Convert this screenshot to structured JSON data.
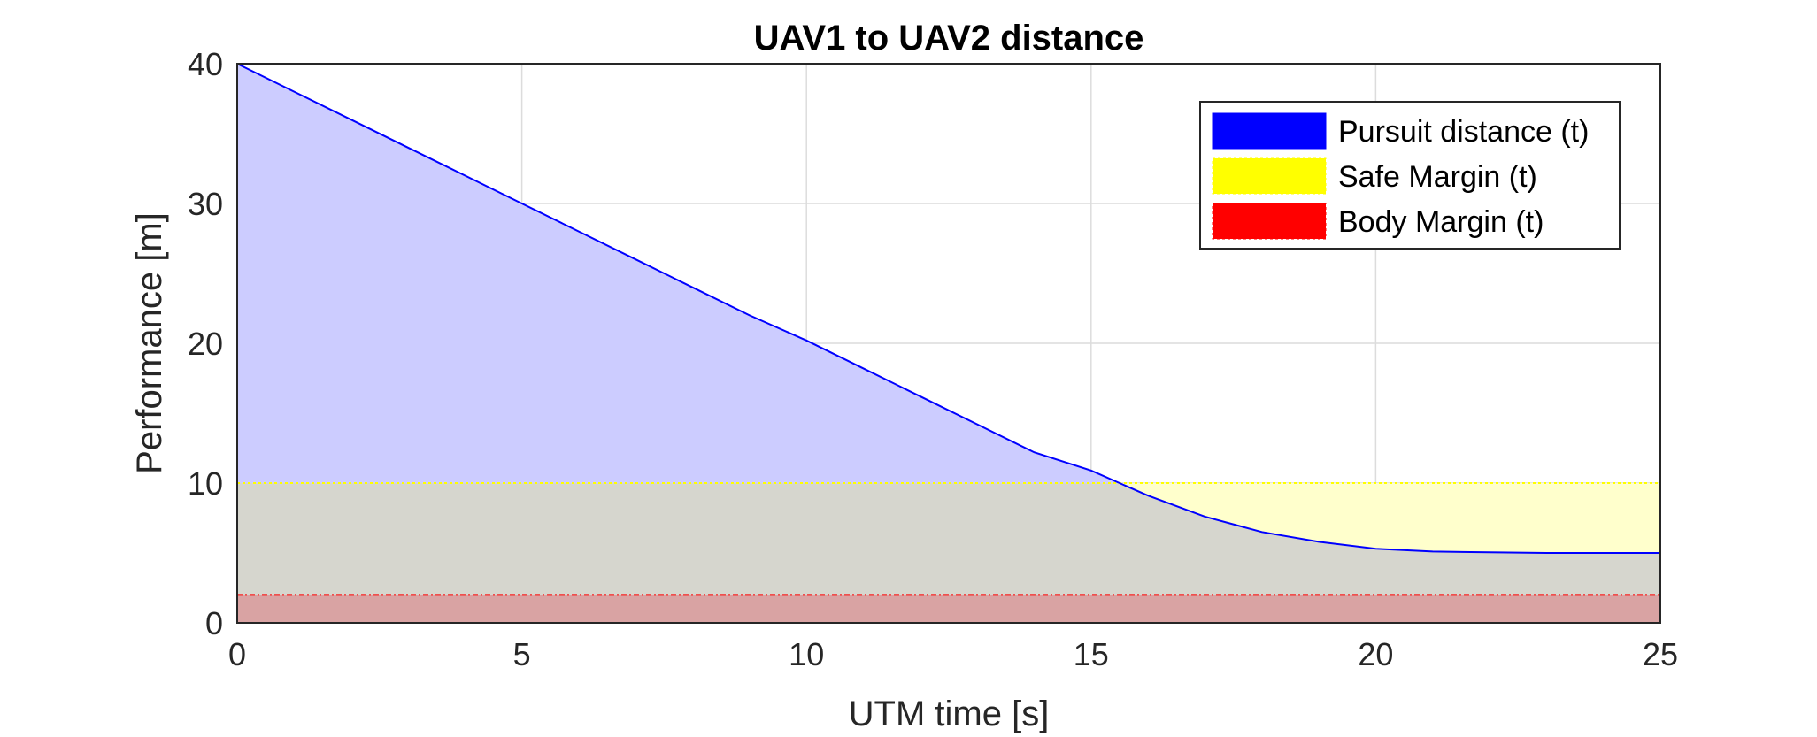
{
  "chart_data": {
    "type": "area",
    "title": "UAV1 to UAV2 distance",
    "xlabel": "UTM time [s]",
    "ylabel": "Performance [m]",
    "xlim": [
      0,
      25
    ],
    "ylim": [
      0,
      40
    ],
    "xticks": [
      "0",
      "5",
      "10",
      "15",
      "20",
      "25"
    ],
    "yticks": [
      "0",
      "10",
      "20",
      "30",
      "40"
    ],
    "grid": true,
    "legend_position": "top-right",
    "series": [
      {
        "name": "Pursuit distance (t)",
        "color": "#0000ff",
        "fill": "#ccccff",
        "x": [
          0,
          1,
          2,
          3,
          4,
          5,
          6,
          7,
          8,
          9,
          10,
          11,
          12,
          13,
          14,
          15,
          15.5,
          16,
          17,
          18,
          19,
          20,
          21,
          22,
          23,
          24,
          25
        ],
        "y": [
          40,
          38,
          36,
          34,
          32,
          30,
          28,
          26,
          24,
          22,
          20.2,
          18.2,
          16.2,
          14.2,
          12.2,
          10.9,
          10.0,
          9.1,
          7.6,
          6.5,
          5.8,
          5.3,
          5.1,
          5.05,
          5.0,
          5.0,
          5.0
        ]
      },
      {
        "name": "Safe Margin (t)",
        "color": "#ffff00",
        "fill": "#ffffcc",
        "x": [
          0,
          25
        ],
        "y": [
          10,
          10
        ]
      },
      {
        "name": "Body Margin (t)",
        "color": "#ff0000",
        "fill": "#d9a3a3",
        "x": [
          0,
          25
        ],
        "y": [
          2,
          2
        ]
      }
    ],
    "overlap_fill_color": "#d6d6ce"
  }
}
